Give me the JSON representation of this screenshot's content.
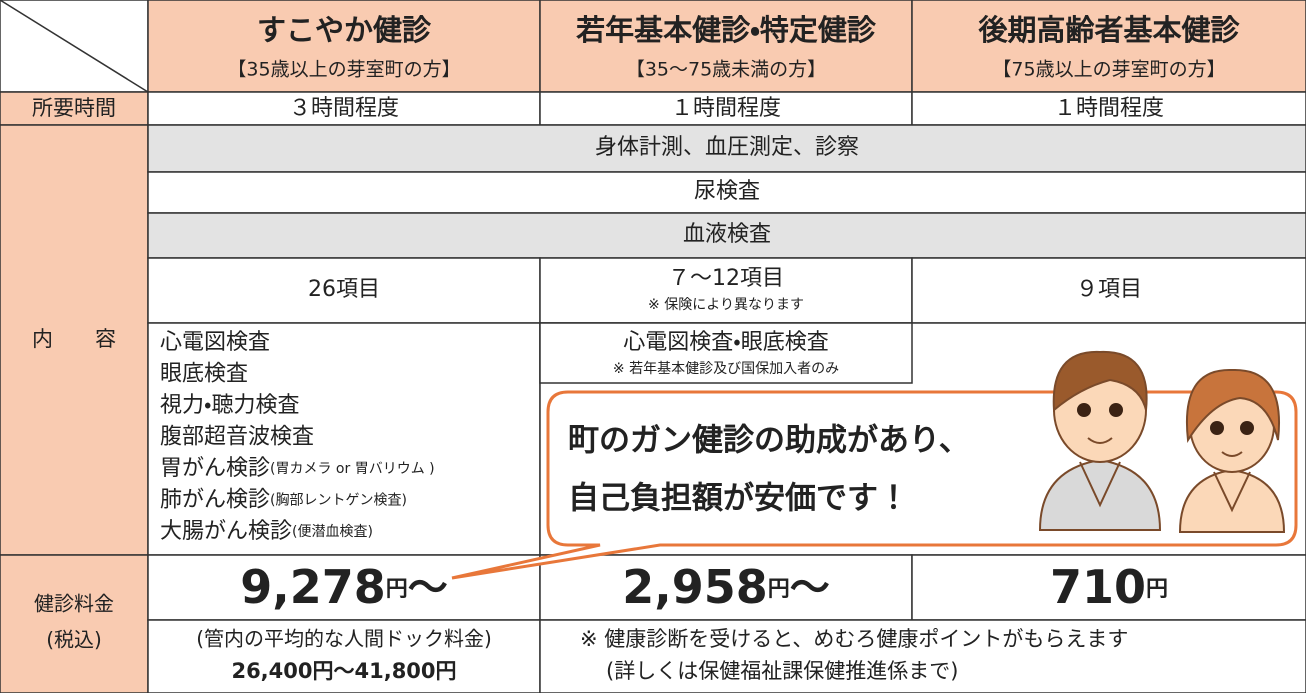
{
  "table": {
    "header": [
      {
        "title": "すこやか健診",
        "subtitle": "【35歳以上の芽室町の方】"
      },
      {
        "title": "若年基本健診・特定健診",
        "subtitle": "【35～75歳未満の方】"
      },
      {
        "title": "後期高齢者基本健診",
        "subtitle": "【75歳以上の芽室町の方】"
      }
    ],
    "duration": {
      "label": "所要時間",
      "values": [
        "３時間程度",
        "１時間程度",
        "１時間程度"
      ]
    },
    "contents": {
      "label": "内　　容",
      "common": [
        "身体計測、血圧測定、診察",
        "尿検査",
        "血液検査"
      ],
      "blood": [
        {
          "text": "26項目"
        },
        {
          "text": "７～12項目",
          "note": "※ 保険により異なります"
        },
        {
          "text": "９項目"
        }
      ],
      "extra_sukoyaka": [
        {
          "main": "心電図検査"
        },
        {
          "main": "眼底検査"
        },
        {
          "main": "視力・聴力検査"
        },
        {
          "main": "腹部超音波検査"
        },
        {
          "main": "胃がん検診",
          "sub": "(胃カメラ or 胃バリウム )"
        },
        {
          "main": "肺がん検診",
          "sub": "(胸部レントゲン検査)"
        },
        {
          "main": "大腸がん検診",
          "sub": "(便潜血検査)"
        }
      ],
      "extra_jakunen": {
        "text": "心電図検査・眼底検査",
        "note": "※ 若年基本健診及び国保加入者のみ"
      }
    },
    "fee": {
      "label": [
        "健診料金",
        "(税込)"
      ],
      "values": [
        {
          "amount": "9,278",
          "unit": "円",
          "suffix": "～"
        },
        {
          "amount": "2,958",
          "unit": "円",
          "suffix": "～"
        },
        {
          "amount": "710",
          "unit": "円"
        }
      ]
    },
    "notes": {
      "sukoyaka": [
        "(管内の平均的な人間ドック料金)",
        "26,400円～41,800円"
      ],
      "others": [
        "※ 健康診断を受けると、めむろ健康ポイントがもらえます",
        "(詳しくは保健福祉課保健推進係まで)"
      ]
    }
  },
  "callout": [
    "町のガン健診の助成があり、",
    "自己負担額が安価です！"
  ]
}
